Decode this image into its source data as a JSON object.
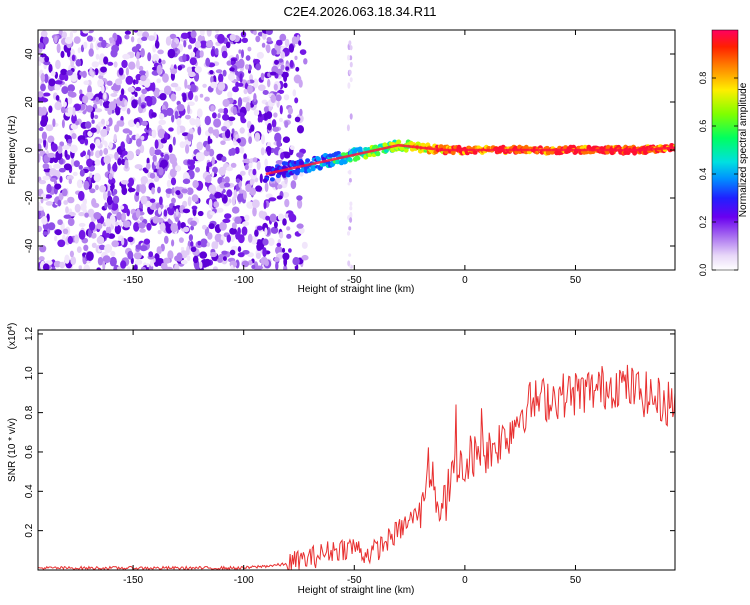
{
  "title": "C2E4.2026.063.18.34.R11",
  "chart_data": [
    {
      "type": "heatmap",
      "name": "spectrogram",
      "xlabel": "Height of straight line (km)",
      "ylabel": "Frequency (Hz)",
      "xlim": [
        -193,
        95
      ],
      "ylim": [
        -50,
        50
      ],
      "xticks": [
        -150,
        -100,
        -50,
        0,
        50
      ],
      "yticks": [
        -40,
        -20,
        0,
        20,
        40
      ],
      "colorbar": {
        "label": "Normalized spectral amplitude",
        "range": [
          0,
          1
        ],
        "ticks": [
          0.0,
          0.2,
          0.4,
          0.6,
          0.8
        ]
      },
      "ridge": {
        "x": [
          -90,
          -80,
          -70,
          -60,
          -50,
          -40,
          -30,
          -20,
          -10,
          0,
          10,
          20,
          30,
          40,
          50,
          60,
          70,
          80,
          95
        ],
        "y": [
          -10,
          -8,
          -6,
          -4,
          -2,
          0,
          2,
          1,
          0,
          0,
          0,
          0,
          0,
          0,
          0,
          0,
          0,
          0,
          1
        ]
      },
      "noise_region_x": [
        -193,
        -80
      ]
    },
    {
      "type": "line",
      "name": "snr",
      "xlabel": "Height of straight line (km)",
      "ylabel": "SNR (10 * v/v)",
      "scale_label": "(x10",
      "scale_exponent": "4",
      "scale_suffix": ")",
      "xlim": [
        -193,
        95
      ],
      "ylim": [
        0,
        1.22
      ],
      "xticks": [
        -150,
        -100,
        -50,
        0,
        50
      ],
      "yticks": [
        0.2,
        0.4,
        0.6,
        0.8,
        1.0,
        1.2
      ],
      "line_color": "#e83030",
      "series": [
        {
          "name": "SNR",
          "x": [
            -193,
            -100,
            -80,
            -70,
            -60,
            -50,
            -45,
            -40,
            -35,
            -30,
            -25,
            -20,
            -17,
            -15,
            -12,
            -10,
            -5,
            0,
            5,
            10,
            15,
            20,
            25,
            30,
            40,
            50,
            60,
            70,
            80,
            90,
            95
          ],
          "y": [
            0.01,
            0.01,
            0.03,
            0.06,
            0.1,
            0.12,
            0.08,
            0.1,
            0.15,
            0.2,
            0.25,
            0.3,
            0.55,
            0.45,
            0.35,
            0.3,
            0.5,
            0.55,
            0.6,
            0.6,
            0.65,
            0.7,
            0.8,
            0.85,
            0.88,
            0.9,
            0.92,
            0.95,
            0.9,
            0.85,
            0.85
          ]
        }
      ]
    }
  ]
}
